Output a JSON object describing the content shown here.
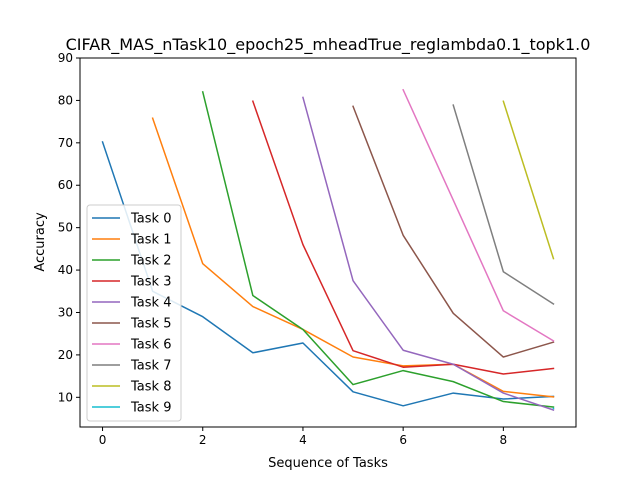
{
  "chart_data": {
    "type": "line",
    "title": "CIFAR_MAS_nTask10_epoch25_mheadTrue_reglambda0.1_topk1.0",
    "xlabel": "Sequence of Tasks",
    "ylabel": "Accuracy",
    "xlim": [
      -0.45,
      9.45
    ],
    "ylim": [
      3,
      90
    ],
    "xticks": [
      0,
      2,
      4,
      6,
      8
    ],
    "yticks": [
      10,
      20,
      30,
      40,
      50,
      60,
      70,
      80,
      90
    ],
    "grid": false,
    "legend_position": "center-left",
    "series": [
      {
        "name": "Task 0",
        "color": "#1f77b4",
        "x": [
          0,
          1,
          2,
          3,
          4,
          5,
          6,
          7,
          8,
          9
        ],
        "y": [
          70.2,
          35.0,
          29.0,
          20.5,
          22.8,
          11.3,
          8.0,
          11.0,
          9.6,
          10.2
        ]
      },
      {
        "name": "Task 1",
        "color": "#ff7f0e",
        "x": [
          1,
          2,
          3,
          4,
          5,
          6,
          7,
          8,
          9
        ],
        "y": [
          75.8,
          41.5,
          31.4,
          26.0,
          19.5,
          17.4,
          17.8,
          11.4,
          10.1
        ]
      },
      {
        "name": "Task 2",
        "color": "#2ca02c",
        "x": [
          2,
          3,
          4,
          5,
          6,
          7,
          8,
          9
        ],
        "y": [
          82.0,
          34.0,
          26.0,
          13.0,
          16.3,
          13.7,
          9.0,
          7.7
        ]
      },
      {
        "name": "Task 3",
        "color": "#d62728",
        "x": [
          3,
          4,
          5,
          6,
          7,
          8,
          9
        ],
        "y": [
          79.8,
          46.0,
          21.0,
          17.1,
          17.8,
          15.5,
          16.8
        ]
      },
      {
        "name": "Task 4",
        "color": "#9467bd",
        "x": [
          4,
          5,
          6,
          7,
          8,
          9
        ],
        "y": [
          80.7,
          37.5,
          21.1,
          17.8,
          11.0,
          7.0
        ]
      },
      {
        "name": "Task 5",
        "color": "#8c564b",
        "x": [
          5,
          6,
          7,
          8,
          9
        ],
        "y": [
          78.6,
          48.2,
          29.8,
          19.5,
          23.0
        ]
      },
      {
        "name": "Task 6",
        "color": "#e377c2",
        "x": [
          6,
          7,
          8,
          9
        ],
        "y": [
          82.5,
          56.5,
          30.4,
          23.3
        ]
      },
      {
        "name": "Task 7",
        "color": "#7f7f7f",
        "x": [
          7,
          8,
          9
        ],
        "y": [
          78.9,
          39.6,
          32.0
        ]
      },
      {
        "name": "Task 8",
        "color": "#bcbd22",
        "x": [
          8,
          9
        ],
        "y": [
          79.8,
          42.7
        ]
      },
      {
        "name": "Task 9",
        "color": "#17becf",
        "x": [
          9
        ],
        "y": [
          7.4
        ]
      }
    ]
  }
}
